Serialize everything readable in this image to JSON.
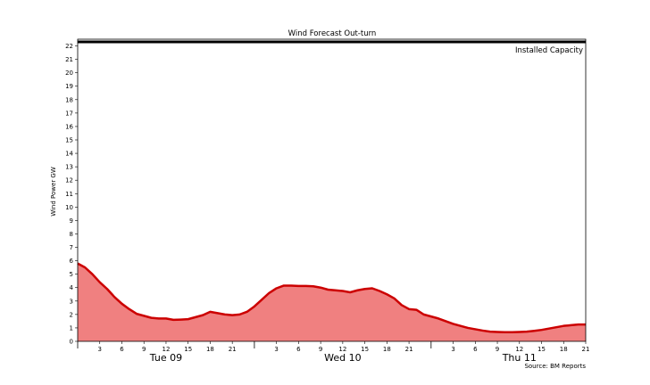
{
  "chart_data": {
    "type": "area",
    "title": "Wind Forecast Out-turn",
    "ylabel": "Wind Power GW",
    "ylim": [
      0,
      22.5
    ],
    "xlim": [
      0,
      69
    ],
    "yticks": [
      0,
      1,
      2,
      3,
      4,
      5,
      6,
      7,
      8,
      9,
      10,
      11,
      12,
      13,
      14,
      15,
      16,
      17,
      18,
      19,
      20,
      21,
      22
    ],
    "hour_ticks": [
      {
        "x": 3,
        "label": "3"
      },
      {
        "x": 6,
        "label": "6"
      },
      {
        "x": 9,
        "label": "9"
      },
      {
        "x": 12,
        "label": "12"
      },
      {
        "x": 15,
        "label": "15"
      },
      {
        "x": 18,
        "label": "18"
      },
      {
        "x": 21,
        "label": "21"
      },
      {
        "x": 27,
        "label": "3"
      },
      {
        "x": 30,
        "label": "6"
      },
      {
        "x": 33,
        "label": "9"
      },
      {
        "x": 36,
        "label": "12"
      },
      {
        "x": 39,
        "label": "15"
      },
      {
        "x": 42,
        "label": "18"
      },
      {
        "x": 45,
        "label": "21"
      },
      {
        "x": 51,
        "label": "3"
      },
      {
        "x": 54,
        "label": "6"
      },
      {
        "x": 57,
        "label": "9"
      },
      {
        "x": 60,
        "label": "12"
      },
      {
        "x": 63,
        "label": "15"
      },
      {
        "x": 66,
        "label": "18"
      },
      {
        "x": 69,
        "label": "21"
      }
    ],
    "day_ticks": [
      {
        "x": 0,
        "label": ""
      },
      {
        "x": 24,
        "label": ""
      },
      {
        "x": 48,
        "label": ""
      }
    ],
    "day_labels": [
      {
        "x": 12,
        "label": "Tue 09"
      },
      {
        "x": 36,
        "label": "Wed 10"
      },
      {
        "x": 60,
        "label": "Thu 11"
      }
    ],
    "installed_capacity": {
      "value": 22.3,
      "label": "Installed Capacity"
    },
    "series": [
      {
        "x": [
          0,
          1,
          2,
          3,
          4,
          5,
          6,
          7,
          8,
          9,
          10,
          11,
          12,
          13,
          14,
          15,
          16,
          17,
          18,
          19,
          20,
          21,
          22,
          23,
          24,
          25,
          26,
          27,
          28,
          29,
          30,
          31,
          32,
          33,
          34,
          35,
          36,
          37,
          38,
          39,
          40,
          41,
          42,
          43,
          44,
          45,
          46,
          47,
          48,
          49,
          50,
          51,
          52,
          53,
          54,
          55,
          56,
          57,
          58,
          59,
          60,
          61,
          62,
          63,
          64,
          65,
          66,
          67,
          68,
          69
        ],
        "values": [
          5.8,
          5.5,
          5.0,
          4.4,
          3.9,
          3.3,
          2.8,
          2.4,
          2.05,
          1.9,
          1.75,
          1.7,
          1.7,
          1.6,
          1.62,
          1.65,
          1.8,
          1.95,
          2.2,
          2.1,
          2.0,
          1.95,
          2.0,
          2.2,
          2.6,
          3.1,
          3.6,
          3.95,
          4.15,
          4.15,
          4.12,
          4.12,
          4.1,
          4.0,
          3.85,
          3.8,
          3.75,
          3.65,
          3.8,
          3.9,
          3.95,
          3.75,
          3.5,
          3.2,
          2.7,
          2.4,
          2.35,
          2.0,
          1.85,
          1.7,
          1.5,
          1.3,
          1.15,
          1.0,
          0.9,
          0.8,
          0.72,
          0.7,
          0.68,
          0.68,
          0.7,
          0.72,
          0.78,
          0.85,
          0.95,
          1.05,
          1.15,
          1.2,
          1.25,
          1.25
        ]
      }
    ],
    "fill_color": "#f08080",
    "line_color": "#cc0000",
    "source": "Source: BM Reports"
  }
}
